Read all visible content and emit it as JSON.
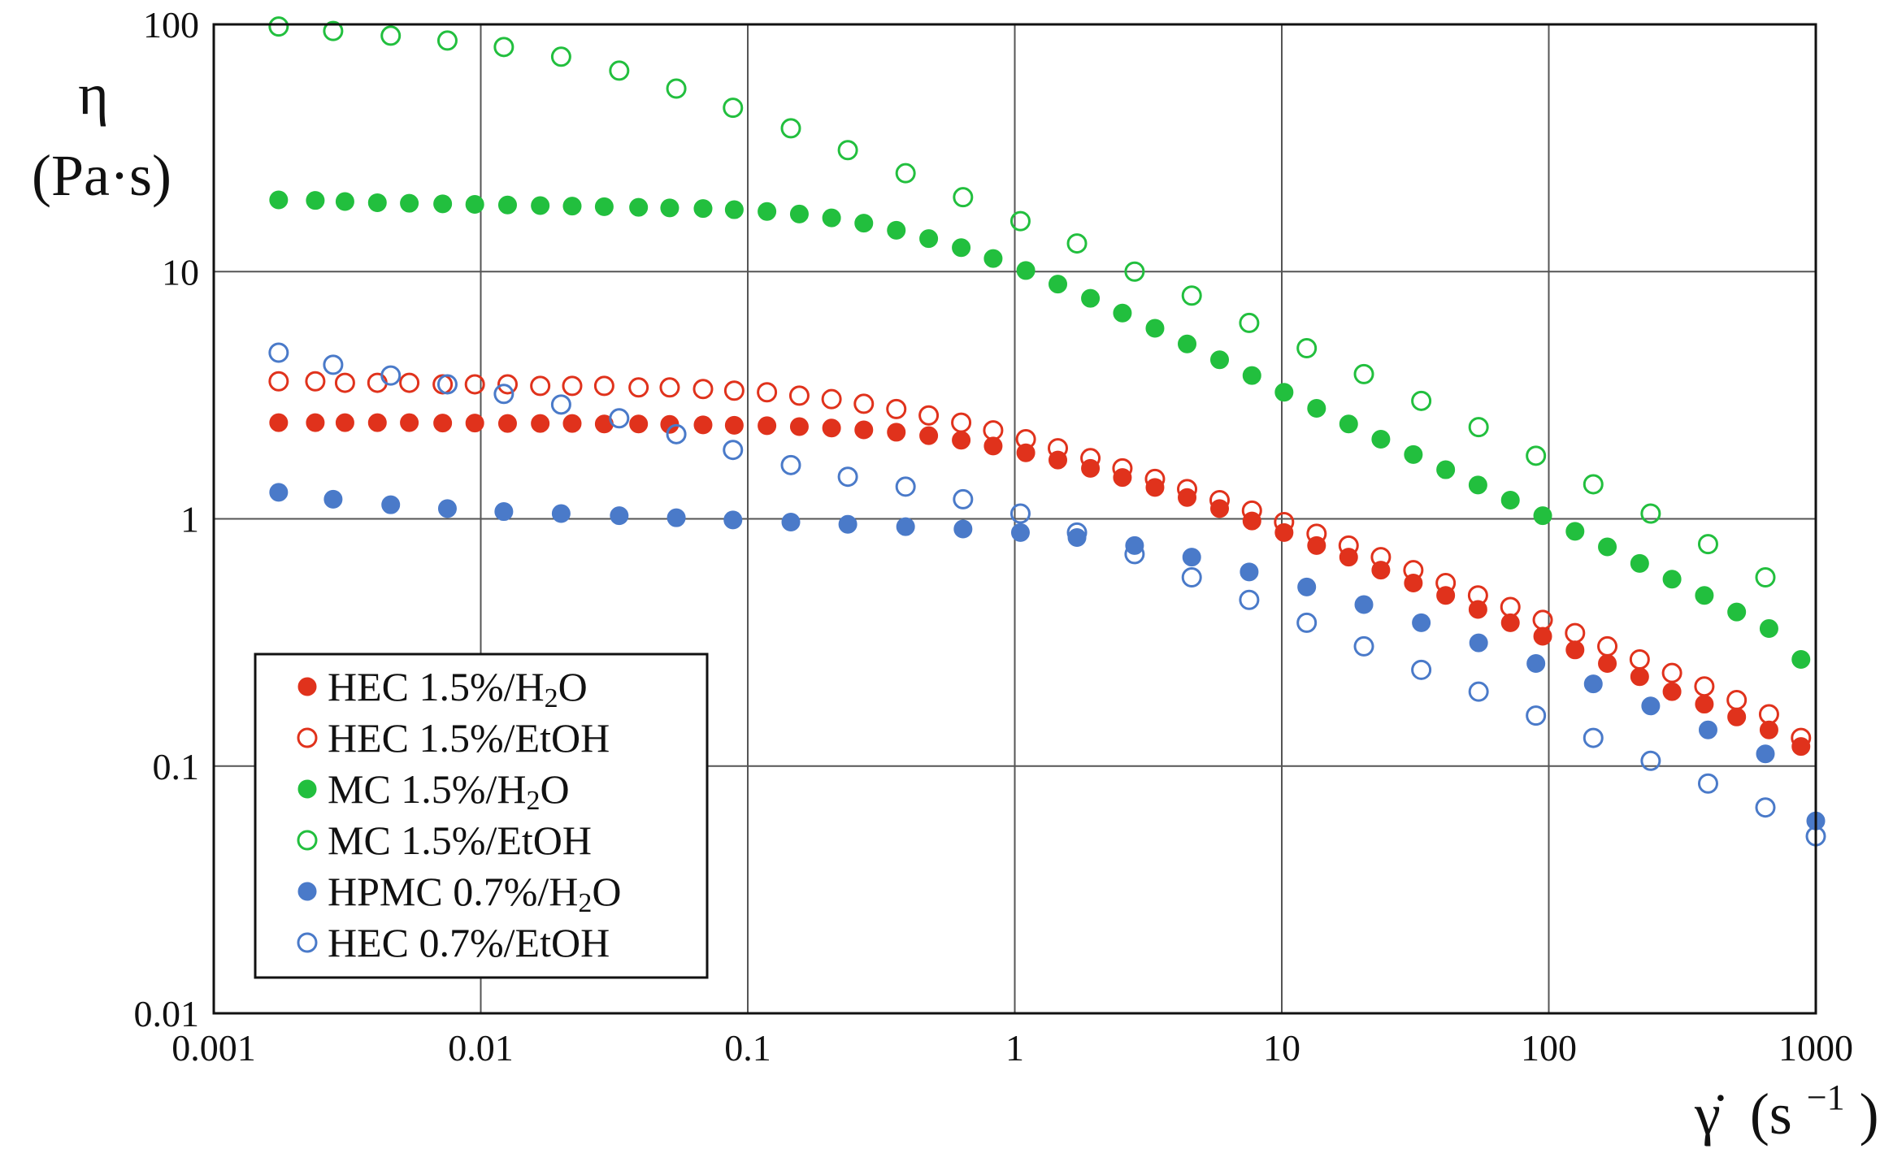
{
  "chart_data": {
    "type": "scatter",
    "xscale": "log",
    "yscale": "log",
    "xlim": [
      0.001,
      1000
    ],
    "ylim": [
      0.01,
      100
    ],
    "grid": true,
    "legend_position": "bottom-left",
    "ylabel_symbol": "η",
    "ylabel_units": "(Pa·s)",
    "xlabel_symbol": "γ̇",
    "xlabel_units": "(s",
    "xlabel_exp": "−1",
    "xlabel_close": ")",
    "x_ticks": [
      {
        "value": 0.001,
        "label": "0.001"
      },
      {
        "value": 0.01,
        "label": "0.01"
      },
      {
        "value": 0.1,
        "label": "0.1"
      },
      {
        "value": 1,
        "label": "1"
      },
      {
        "value": 10,
        "label": "10"
      },
      {
        "value": 100,
        "label": "100"
      },
      {
        "value": 1000,
        "label": "1000"
      }
    ],
    "y_ticks": [
      {
        "value": 0.01,
        "label": "0.01"
      },
      {
        "value": 0.1,
        "label": "0.1"
      },
      {
        "value": 1,
        "label": "1"
      },
      {
        "value": 10,
        "label": "10"
      },
      {
        "value": 100,
        "label": "100"
      }
    ],
    "series": [
      {
        "name": "HEC 1.5%/H2O",
        "label_main": "HEC 1.5%/H",
        "label_sub": "2",
        "label_tail": "O",
        "color": "#e0321c",
        "filled": true,
        "x": [
          0.00175,
          0.0024,
          0.0031,
          0.0041,
          0.0054,
          0.0072,
          0.0095,
          0.0126,
          0.0167,
          0.022,
          0.029,
          0.039,
          0.051,
          0.068,
          0.089,
          0.118,
          0.156,
          0.206,
          0.272,
          0.36,
          0.476,
          0.63,
          0.83,
          1.1,
          1.45,
          1.92,
          2.53,
          3.35,
          4.42,
          5.85,
          7.73,
          10.2,
          13.5,
          17.8,
          23.5,
          31.1,
          41.1,
          54.3,
          71.8,
          94.9,
          125.4,
          165.7,
          219,
          289.4,
          382.5,
          505.5,
          668,
          880
        ],
        "y": [
          2.45,
          2.45,
          2.45,
          2.45,
          2.45,
          2.44,
          2.44,
          2.43,
          2.43,
          2.43,
          2.42,
          2.42,
          2.41,
          2.4,
          2.39,
          2.38,
          2.36,
          2.33,
          2.29,
          2.24,
          2.17,
          2.08,
          1.97,
          1.85,
          1.73,
          1.6,
          1.47,
          1.34,
          1.22,
          1.1,
          0.98,
          0.88,
          0.78,
          0.7,
          0.62,
          0.55,
          0.49,
          0.43,
          0.38,
          0.335,
          0.295,
          0.26,
          0.23,
          0.2,
          0.178,
          0.158,
          0.14,
          0.12
        ]
      },
      {
        "name": "HEC 1.5%/EtOH",
        "label_main": "HEC 1.5%/EtOH",
        "label_sub": "",
        "label_tail": "",
        "color": "#e0321c",
        "filled": false,
        "x": [
          0.00175,
          0.0024,
          0.0031,
          0.0041,
          0.0054,
          0.0072,
          0.0095,
          0.0126,
          0.0167,
          0.022,
          0.029,
          0.039,
          0.051,
          0.068,
          0.089,
          0.118,
          0.156,
          0.206,
          0.272,
          0.36,
          0.476,
          0.63,
          0.83,
          1.1,
          1.45,
          1.92,
          2.53,
          3.35,
          4.42,
          5.85,
          7.73,
          10.2,
          13.5,
          17.8,
          23.5,
          31.1,
          41.1,
          54.3,
          71.8,
          94.9,
          125.4,
          165.7,
          219,
          289.4,
          382.5,
          505.5,
          668,
          880
        ],
        "y": [
          3.6,
          3.6,
          3.55,
          3.55,
          3.55,
          3.5,
          3.5,
          3.5,
          3.45,
          3.45,
          3.45,
          3.4,
          3.4,
          3.35,
          3.3,
          3.25,
          3.15,
          3.05,
          2.92,
          2.78,
          2.62,
          2.45,
          2.28,
          2.1,
          1.93,
          1.76,
          1.6,
          1.45,
          1.32,
          1.19,
          1.08,
          0.97,
          0.87,
          0.78,
          0.7,
          0.62,
          0.55,
          0.49,
          0.44,
          0.39,
          0.345,
          0.305,
          0.27,
          0.238,
          0.21,
          0.185,
          0.162,
          0.13
        ]
      },
      {
        "name": "MC 1.5%/H2O",
        "label_main": "MC 1.5%/H",
        "label_sub": "2",
        "label_tail": "O",
        "color": "#22bf3e",
        "filled": true,
        "x": [
          0.00175,
          0.0024,
          0.0031,
          0.0041,
          0.0054,
          0.0072,
          0.0095,
          0.0126,
          0.0167,
          0.022,
          0.029,
          0.039,
          0.051,
          0.068,
          0.089,
          0.118,
          0.156,
          0.206,
          0.272,
          0.36,
          0.476,
          0.63,
          0.83,
          1.1,
          1.45,
          1.92,
          2.53,
          3.35,
          4.42,
          5.85,
          7.73,
          10.2,
          13.5,
          17.8,
          23.5,
          31.1,
          41.1,
          54.3,
          71.8,
          94.9,
          125.4,
          165.7,
          219,
          289.4,
          382.5,
          505.5,
          668,
          880
        ],
        "y": [
          19.5,
          19.4,
          19.2,
          19,
          18.9,
          18.8,
          18.7,
          18.6,
          18.5,
          18.4,
          18.3,
          18.2,
          18.1,
          18,
          17.8,
          17.5,
          17.1,
          16.5,
          15.7,
          14.7,
          13.6,
          12.5,
          11.3,
          10.1,
          8.9,
          7.8,
          6.8,
          5.9,
          5.1,
          4.4,
          3.8,
          3.25,
          2.8,
          2.42,
          2.1,
          1.82,
          1.58,
          1.37,
          1.19,
          1.03,
          0.89,
          0.77,
          0.66,
          0.57,
          0.49,
          0.42,
          0.36,
          0.27
        ]
      },
      {
        "name": "MC 1.5%/EtOH",
        "label_main": "MC 1.5%/EtOH",
        "label_sub": "",
        "label_tail": "",
        "color": "#22bf3e",
        "filled": false,
        "x": [
          0.00175,
          0.0028,
          0.0046,
          0.0075,
          0.0122,
          0.02,
          0.033,
          0.054,
          0.088,
          0.145,
          0.237,
          0.39,
          0.64,
          1.05,
          1.71,
          2.81,
          4.6,
          7.55,
          12.4,
          20.3,
          33.3,
          54.6,
          89.5,
          146.8,
          240.8,
          395,
          647.5
        ],
        "y": [
          98,
          94,
          90,
          86,
          81,
          74,
          65,
          55,
          46,
          38,
          31,
          25,
          20,
          16,
          13,
          10,
          8,
          6.2,
          4.9,
          3.85,
          3.0,
          2.35,
          1.8,
          1.38,
          1.05,
          0.79,
          0.58
        ]
      },
      {
        "name": "HPMC 0.7%/H2O",
        "label_main": "HPMC 0.7%/H",
        "label_sub": "2",
        "label_tail": "O",
        "color": "#4a7ac9",
        "filled": true,
        "x": [
          0.00175,
          0.0028,
          0.0046,
          0.0075,
          0.0122,
          0.02,
          0.033,
          0.054,
          0.088,
          0.145,
          0.237,
          0.39,
          0.64,
          1.05,
          1.71,
          2.81,
          4.6,
          7.55,
          12.4,
          20.3,
          33.3,
          54.6,
          89.5,
          146.8,
          240.8,
          395,
          647.5,
          1000
        ],
        "y": [
          1.28,
          1.2,
          1.14,
          1.1,
          1.07,
          1.05,
          1.03,
          1.01,
          0.99,
          0.97,
          0.95,
          0.93,
          0.91,
          0.88,
          0.84,
          0.78,
          0.7,
          0.61,
          0.53,
          0.45,
          0.38,
          0.315,
          0.26,
          0.215,
          0.175,
          0.14,
          0.112,
          0.06
        ]
      },
      {
        "name": "HEC 0.7%/EtOH",
        "label_main": "HEC 0.7%/EtOH",
        "label_sub": "",
        "label_tail": "",
        "color": "#4a7ac9",
        "filled": false,
        "x": [
          0.00175,
          0.0028,
          0.0046,
          0.0075,
          0.0122,
          0.02,
          0.033,
          0.054,
          0.088,
          0.145,
          0.237,
          0.39,
          0.64,
          1.05,
          1.71,
          2.81,
          4.6,
          7.55,
          12.4,
          20.3,
          33.3,
          54.6,
          89.5,
          146.8,
          240.8,
          395,
          647.5,
          1000
        ],
        "y": [
          4.7,
          4.2,
          3.8,
          3.5,
          3.2,
          2.9,
          2.55,
          2.2,
          1.9,
          1.65,
          1.48,
          1.35,
          1.2,
          1.05,
          0.88,
          0.72,
          0.58,
          0.47,
          0.38,
          0.305,
          0.245,
          0.2,
          0.16,
          0.13,
          0.105,
          0.085,
          0.068,
          0.052
        ]
      }
    ]
  }
}
